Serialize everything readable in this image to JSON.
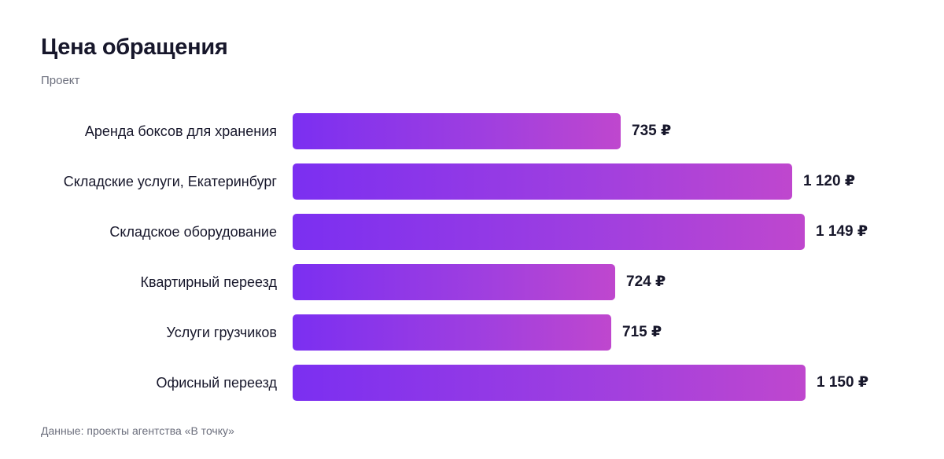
{
  "header": {
    "title": "Цена обращения",
    "subtitle": "Проект"
  },
  "footer": {
    "source": "Данные: проекты агентства «В точку»"
  },
  "colors": {
    "bar_start": "#7b2ff1",
    "bar_end": "#bf47ce",
    "text": "#17172b",
    "muted": "#6b6e7c"
  },
  "chart_data": {
    "type": "bar",
    "orientation": "horizontal",
    "title": "Цена обращения",
    "subtitle": "Проект",
    "unit": "₽",
    "categories": [
      "Аренда боксов для хранения",
      "Складские услуги, Екатеринбург",
      "Складское оборудование",
      "Квартирный переезд",
      "Услуги грузчиков",
      "Офисный переезд"
    ],
    "values": [
      735,
      1120,
      1149,
      724,
      715,
      1150
    ],
    "value_labels": [
      "735 ₽",
      "1 120 ₽",
      "1 149 ₽",
      "724 ₽",
      "715 ₽",
      "1 150 ₽"
    ],
    "xlim": [
      0,
      1150
    ],
    "grid": false,
    "legend": "none"
  }
}
